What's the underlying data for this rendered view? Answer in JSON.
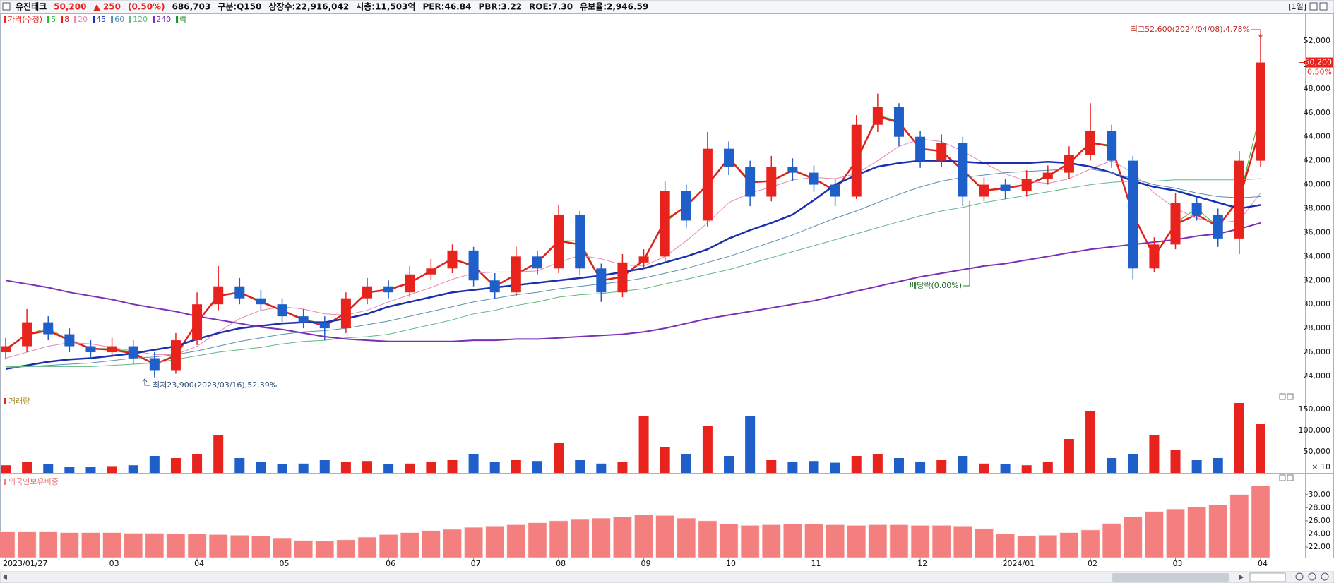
{
  "header": {
    "name": "유진테크",
    "price": "50,200",
    "change": "▲ 250",
    "change_pct": "(0.50%)",
    "volume": "686,703",
    "items": [
      "구분:Q150",
      "상장수:22,916,042",
      "시총:11,503억",
      "PER:46.84",
      "PBR:3.22",
      "ROE:7.30",
      "유보율:2,946.59"
    ],
    "period": "[1일]"
  },
  "chart_data": [
    {
      "type": "candlestick",
      "legend_price": "가격(수정)",
      "legend_ex": "락",
      "up_color": "#e8231e",
      "down_color": "#1f5fc9",
      "categories": [
        "2023/01/27",
        null,
        null,
        null,
        null,
        "03",
        null,
        null,
        null,
        "04",
        null,
        null,
        null,
        "05",
        null,
        null,
        null,
        null,
        "06",
        null,
        null,
        null,
        "07",
        null,
        null,
        null,
        "08",
        null,
        null,
        null,
        "09",
        null,
        null,
        null,
        "10",
        null,
        null,
        null,
        "11",
        null,
        null,
        null,
        null,
        "12",
        null,
        null,
        null,
        "2024/01",
        null,
        null,
        null,
        "02",
        null,
        null,
        null,
        "03",
        null,
        null,
        null,
        "04"
      ],
      "candles": {
        "open": [
          26000,
          26500,
          28500,
          27500,
          26500,
          26000,
          26500,
          25500,
          24500,
          27000,
          30000,
          31500,
          30500,
          30000,
          29000,
          28500,
          28000,
          30500,
          31500,
          31000,
          32500,
          33000,
          34500,
          32000,
          31000,
          34000,
          33000,
          37500,
          33000,
          31000,
          33500,
          34000,
          39500,
          37000,
          43000,
          41500,
          39000,
          41500,
          41000,
          40000,
          39000,
          45000,
          46500,
          44000,
          42000,
          43500,
          39000,
          40000,
          39500,
          40500,
          41000,
          42500,
          44500,
          42000,
          33000,
          35000,
          38500,
          37500,
          35500,
          42000
        ],
        "high": [
          27200,
          29600,
          29000,
          28000,
          27000,
          27200,
          27000,
          26000,
          27600,
          31000,
          33200,
          32200,
          31200,
          30500,
          29600,
          29000,
          31000,
          32200,
          32000,
          33200,
          33800,
          35000,
          34800,
          32600,
          34800,
          34500,
          38300,
          37800,
          33400,
          34200,
          34600,
          40300,
          40000,
          44400,
          43600,
          42000,
          42400,
          42200,
          41600,
          40500,
          45800,
          47600,
          46800,
          44500,
          44200,
          44000,
          40600,
          40500,
          41200,
          41600,
          43200,
          46800,
          45000,
          42400,
          35600,
          39300,
          39000,
          38000,
          42800,
          52600
        ],
        "low": [
          25400,
          26000,
          27000,
          26000,
          25500,
          25600,
          25000,
          23900,
          24200,
          26600,
          29500,
          30000,
          29500,
          28500,
          28000,
          27000,
          27600,
          30000,
          30500,
          30600,
          32000,
          32600,
          31500,
          30500,
          30700,
          32500,
          32600,
          32400,
          30200,
          30600,
          33000,
          33600,
          36400,
          36500,
          40800,
          38200,
          38600,
          40300,
          39400,
          38200,
          38800,
          44400,
          43200,
          41400,
          41500,
          38200,
          38600,
          38800,
          39000,
          40000,
          40500,
          42000,
          41400,
          32100,
          32700,
          34600,
          37000,
          34800,
          34200,
          41500
        ],
        "close": [
          26500,
          28500,
          27500,
          26500,
          26000,
          26500,
          25500,
          24500,
          27000,
          30000,
          31500,
          30500,
          30000,
          29000,
          28500,
          28000,
          30500,
          31500,
          31000,
          32500,
          33000,
          34500,
          32000,
          31000,
          34000,
          33000,
          37500,
          33000,
          31000,
          33500,
          34000,
          39500,
          37000,
          43000,
          41500,
          39000,
          41500,
          41000,
          40000,
          39000,
          45000,
          46500,
          44000,
          42000,
          43500,
          39000,
          40000,
          39500,
          40500,
          41000,
          42500,
          44500,
          42000,
          33000,
          35000,
          38500,
          37500,
          35500,
          42000,
          50200
        ]
      },
      "series": [
        {
          "name": "5",
          "color": "#2bb32b",
          "width": 1,
          "values": [
            26300,
            27500,
            28000,
            27000,
            26300,
            26300,
            26000,
            25000,
            25800,
            28500,
            30800,
            31000,
            30300,
            29500,
            28800,
            28300,
            29300,
            31000,
            31300,
            31800,
            32800,
            33800,
            33300,
            31500,
            32500,
            33500,
            35300,
            35300,
            32000,
            32300,
            33800,
            36800,
            38300,
            40000,
            42300,
            40300,
            40300,
            41300,
            40500,
            39500,
            42000,
            45800,
            45300,
            43000,
            42800,
            41300,
            39500,
            39800,
            40000,
            40800,
            41800,
            43500,
            43300,
            37500,
            34000,
            36800,
            38000,
            36500,
            38800,
            46100
          ]
        },
        {
          "name": "8",
          "color": "#e0201a",
          "width": 2.5,
          "values": [
            26200,
            27500,
            27800,
            27000,
            26300,
            26200,
            25900,
            25000,
            25700,
            28500,
            30700,
            31000,
            30200,
            29500,
            28700,
            28200,
            29300,
            31000,
            31200,
            31800,
            32800,
            33800,
            33200,
            31500,
            32500,
            33500,
            35300,
            35000,
            32000,
            32300,
            33700,
            37000,
            38200,
            40000,
            42200,
            40200,
            40300,
            41200,
            40500,
            39500,
            42000,
            45700,
            45200,
            43000,
            42800,
            41200,
            39500,
            39700,
            40000,
            40700,
            41800,
            43500,
            43200,
            37500,
            34000,
            36700,
            37500,
            36500,
            38800,
            44800
          ]
        },
        {
          "name": "20",
          "color": "#e58aae",
          "width": 1,
          "values": [
            25500,
            26000,
            26500,
            26800,
            26700,
            26400,
            26100,
            25800,
            25800,
            26500,
            27700,
            28800,
            29500,
            29800,
            29600,
            29200,
            29100,
            29500,
            30200,
            30800,
            31400,
            32100,
            32600,
            32700,
            32700,
            32800,
            33500,
            34100,
            33800,
            33300,
            33200,
            34000,
            35300,
            36800,
            38500,
            39300,
            39800,
            40400,
            40600,
            40500,
            40900,
            42000,
            43200,
            43800,
            43600,
            42800,
            41800,
            40900,
            40300,
            40100,
            40500,
            41300,
            42000,
            41000,
            39300,
            38000,
            37200,
            36800,
            37000,
            39300
          ]
        },
        {
          "name": "45",
          "color": "#1a2fb0",
          "width": 2.5,
          "values": [
            24600,
            24900,
            25200,
            25400,
            25500,
            25700,
            25900,
            26200,
            26500,
            27100,
            27600,
            28000,
            28200,
            28400,
            28500,
            28500,
            28800,
            29200,
            29800,
            30200,
            30600,
            31000,
            31200,
            31400,
            31600,
            31800,
            32000,
            32200,
            32400,
            32700,
            33000,
            33500,
            34000,
            34600,
            35500,
            36200,
            36800,
            37500,
            38700,
            40000,
            40800,
            41500,
            41800,
            42000,
            42000,
            41900,
            41800,
            41800,
            41800,
            41900,
            41800,
            41500,
            41000,
            40300,
            39800,
            39500,
            39000,
            38500,
            38000,
            38300
          ]
        },
        {
          "name": "60",
          "color": "#5a8fb0",
          "width": 1,
          "values": [
            24700,
            24800,
            24900,
            25000,
            25100,
            25300,
            25500,
            25600,
            25800,
            26100,
            26500,
            26900,
            27200,
            27500,
            27700,
            27800,
            28000,
            28300,
            28600,
            29000,
            29400,
            29800,
            30200,
            30500,
            30800,
            31000,
            31300,
            31500,
            31700,
            31900,
            32200,
            32600,
            33000,
            33500,
            34000,
            34600,
            35200,
            35800,
            36500,
            37200,
            37800,
            38500,
            39200,
            39800,
            40300,
            40600,
            40800,
            41000,
            41100,
            41200,
            41300,
            41300,
            41000,
            40500,
            40000,
            39700,
            39300,
            39000,
            38900,
            39000
          ]
        },
        {
          "name": "120",
          "color": "#62b884",
          "width": 1,
          "values": [
            24800,
            24800,
            24800,
            24800,
            24800,
            24900,
            25000,
            25100,
            25400,
            25700,
            26000,
            26200,
            26400,
            26700,
            26900,
            27000,
            27200,
            27300,
            27500,
            27900,
            28300,
            28700,
            29200,
            29500,
            29900,
            30200,
            30600,
            30800,
            30900,
            31100,
            31300,
            31700,
            32100,
            32500,
            32900,
            33400,
            33900,
            34400,
            34900,
            35400,
            35900,
            36400,
            36900,
            37400,
            37800,
            38100,
            38500,
            38800,
            39100,
            39400,
            39700,
            40000,
            40200,
            40300,
            40300,
            40400,
            40400,
            40400,
            40400,
            40500
          ]
        },
        {
          "name": "240",
          "color": "#7a2fb8",
          "width": 2,
          "values": [
            32000,
            31700,
            31400,
            31000,
            30700,
            30400,
            30000,
            29700,
            29400,
            29000,
            28700,
            28400,
            28100,
            27900,
            27600,
            27300,
            27100,
            27000,
            26900,
            26900,
            26900,
            26900,
            27000,
            27000,
            27100,
            27100,
            27200,
            27300,
            27400,
            27500,
            27700,
            28000,
            28400,
            28800,
            29100,
            29400,
            29700,
            30000,
            30300,
            30700,
            31100,
            31500,
            31900,
            32300,
            32600,
            32900,
            33200,
            33400,
            33700,
            34000,
            34300,
            34600,
            34800,
            35000,
            35200,
            35400,
            35700,
            35900,
            36300,
            36800
          ]
        }
      ],
      "last": {
        "value": 50200,
        "label": "50,200",
        "change": "0.50%"
      },
      "annotations": [
        "최고52,600(2024/04/08),4.78%",
        "최저23,900(2023/03/16),52.39%",
        "배당락(0.00%)"
      ],
      "ylim": [
        22700,
        54300
      ],
      "yticks": [
        {
          "value": 24000,
          "label": "24,000"
        },
        {
          "value": 26000,
          "label": "26,000"
        },
        {
          "value": 28000,
          "label": "28,000"
        },
        {
          "value": 30000,
          "label": "30,000"
        },
        {
          "value": 32000,
          "label": "32,000"
        },
        {
          "value": 34000,
          "label": "34,000"
        },
        {
          "value": 36000,
          "label": "36,000"
        },
        {
          "value": 38000,
          "label": "38,000"
        },
        {
          "value": 40000,
          "label": "40,000"
        },
        {
          "value": 42000,
          "label": "42,000"
        },
        {
          "value": 44000,
          "label": "44,000"
        },
        {
          "value": 46000,
          "label": "46,000"
        },
        {
          "value": 48000,
          "label": "48,000"
        },
        {
          "value": 50000,
          "label": "50,000"
        },
        {
          "value": 52000,
          "label": "52,000"
        }
      ]
    },
    {
      "type": "bar",
      "title": "거래량",
      "unit": "× 10",
      "up_color": "#e8231e",
      "down_color": "#1f5fc9",
      "values": [
        18000,
        25000,
        20000,
        15000,
        14000,
        16000,
        18000,
        40000,
        35000,
        45000,
        90000,
        35000,
        25000,
        20000,
        22000,
        30000,
        25000,
        28000,
        20000,
        22000,
        25000,
        30000,
        45000,
        25000,
        30000,
        28000,
        70000,
        30000,
        22000,
        25000,
        135000,
        60000,
        45000,
        110000,
        40000,
        135000,
        30000,
        25000,
        28000,
        24000,
        40000,
        45000,
        35000,
        25000,
        30000,
        40000,
        22000,
        20000,
        18000,
        25000,
        80000,
        145000,
        35000,
        45000,
        90000,
        55000,
        30000,
        35000,
        165000,
        115000
      ],
      "ylim": [
        0,
        190000
      ],
      "yticks": [
        {
          "value": 50000,
          "label": "50,000"
        },
        {
          "value": 100000,
          "label": "100,000"
        },
        {
          "value": 150000,
          "label": "150,000"
        }
      ]
    },
    {
      "type": "bar",
      "title": "외국인보유비중",
      "color": "#f47f7f",
      "values": [
        24.3,
        24.3,
        24.3,
        24.2,
        24.2,
        24.2,
        24.1,
        24.1,
        24.0,
        24.0,
        23.9,
        23.8,
        23.7,
        23.4,
        23.0,
        22.9,
        23.1,
        23.5,
        23.9,
        24.2,
        24.5,
        24.7,
        25.0,
        25.2,
        25.4,
        25.7,
        26.0,
        26.2,
        26.4,
        26.6,
        26.9,
        26.8,
        26.4,
        26.0,
        25.5,
        25.3,
        25.4,
        25.5,
        25.5,
        25.4,
        25.3,
        25.4,
        25.4,
        25.3,
        25.3,
        25.2,
        24.8,
        24.0,
        23.7,
        23.8,
        24.2,
        24.6,
        25.6,
        26.6,
        27.4,
        27.8,
        28.1,
        28.4,
        30.0,
        31.3
      ],
      "ylim": [
        20.4,
        33.2
      ],
      "yticks": [
        {
          "value": 22,
          "label": "22.00"
        },
        {
          "value": 24,
          "label": "24.00"
        },
        {
          "value": 26,
          "label": "26.00"
        },
        {
          "value": 28,
          "label": "28.00"
        },
        {
          "value": 30,
          "label": "30.00"
        }
      ]
    }
  ]
}
